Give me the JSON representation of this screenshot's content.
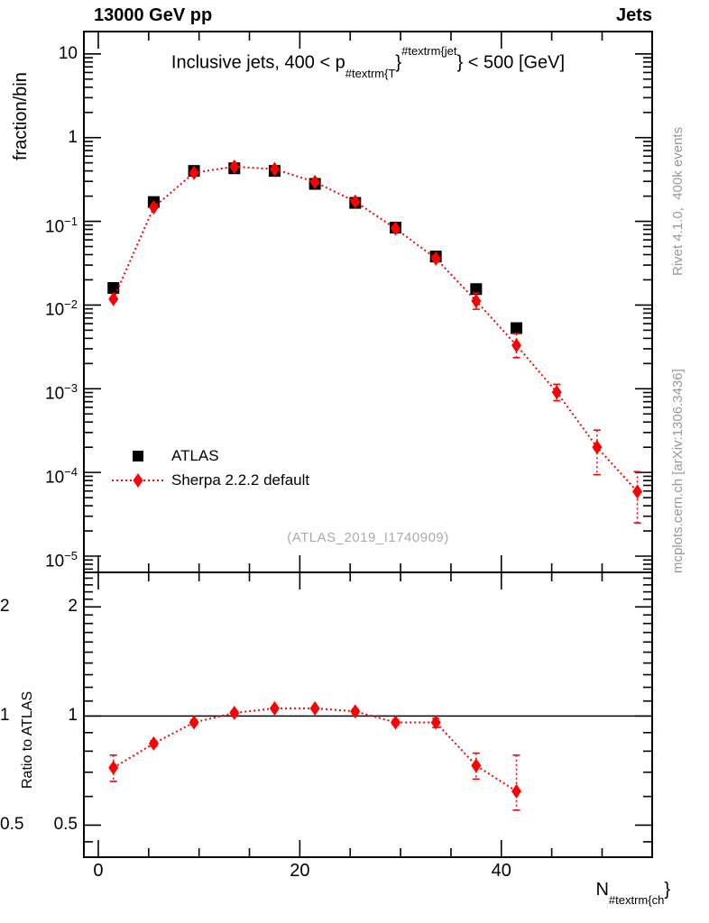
{
  "header": {
    "left": "13000 GeV pp",
    "right": "Jets"
  },
  "title": {
    "pre": "Inclusive jets, 400 < p",
    "sub": "#textrm{T",
    "brace1": "}",
    "sup": "#textrm{jet",
    "brace2": "}",
    "post": " < 500 [GeV]"
  },
  "watermark": {
    "text": "(ATLAS_2019_I1740909)"
  },
  "side_notes": {
    "top": "Rivet 4.1.0,  400k events",
    "bottom": "mcplots.cern.ch [arXiv:1306.3436]"
  },
  "x_axis_title": {
    "main": "N",
    "sub": "#textrm{ch",
    "close": "}"
  },
  "legend": {
    "entries": [
      {
        "label": "ATLAS",
        "marker": "square",
        "color": "#000000",
        "line": "none"
      },
      {
        "label": "Sherpa 2.2.2 default",
        "marker": "diamond",
        "color": "#ff0000",
        "line": "dotted"
      }
    ]
  },
  "colors": {
    "data": "#000000",
    "mc": "#ff0000",
    "frame": "#000000",
    "note": "#999999"
  },
  "chart_data": {
    "type": "line",
    "title": "Inclusive jets, 400 < pT^jet < 500 [GeV]",
    "xlabel": "N_ch",
    "grid": false,
    "panels": [
      {
        "id": "main",
        "ylabel": "fraction/bin",
        "y_scale": "log",
        "x_range": [
          -1.43,
          54.97
        ],
        "y_range": [
          6.4e-06,
          18.5
        ],
        "x_ticks_major": [
          {
            "v": 0,
            "t": "0"
          },
          {
            "v": 20,
            "t": "20"
          },
          {
            "v": 40,
            "t": "40"
          }
        ],
        "x_minor_step": 5,
        "x_labels_shown": false,
        "y_ticks": [
          {
            "v": 10,
            "t": "10"
          },
          {
            "v": 1,
            "t": "1"
          },
          {
            "v": 0.1,
            "t": "10",
            "e": "−1"
          },
          {
            "v": 0.01,
            "t": "10",
            "e": "−2"
          },
          {
            "v": 0.001,
            "t": "10",
            "e": "−3"
          },
          {
            "v": 0.0001,
            "t": "10",
            "e": "−4"
          },
          {
            "v": 1e-05,
            "t": "10",
            "e": "−5"
          }
        ],
        "x": [
          1.5,
          5.5,
          9.5,
          13.5,
          17.5,
          21.5,
          25.5,
          29.5,
          33.5,
          37.5,
          41.5,
          45.5,
          49.5,
          53.5
        ],
        "series": [
          {
            "name": "ATLAS",
            "marker": "square",
            "color": "#000000",
            "line": "none",
            "values": [
              0.016,
              0.17,
              0.4,
              0.43,
              0.4,
              0.28,
              0.166,
              0.084,
              0.038,
              0.0155,
              0.0053,
              null,
              null,
              null
            ],
            "err_lo": [
              0.0148,
              0.165,
              0.392,
              0.424,
              0.394,
              0.276,
              0.162,
              0.0815,
              0.0365,
              0.0147,
              0.0049,
              null,
              null,
              null
            ],
            "err_hi": [
              0.0172,
              0.175,
              0.408,
              0.436,
              0.406,
              0.284,
              0.17,
              0.0865,
              0.0395,
              0.0163,
              0.0057,
              null,
              null,
              null
            ]
          },
          {
            "name": "Sherpa 2.2.2 default",
            "marker": "diamond",
            "color": "#ff0000",
            "line": "dotted",
            "values": [
              0.0118,
              0.147,
              0.38,
              0.45,
              0.42,
              0.295,
              0.172,
              0.082,
              0.036,
              0.0112,
              0.0033,
              0.00091,
              0.0002,
              5.9e-05
            ],
            "err_lo": [
              0.0113,
              0.144,
              0.374,
              0.443,
              0.413,
              0.29,
              0.168,
              0.0795,
              0.0345,
              0.0089,
              0.00235,
              0.00072,
              9.4e-05,
              2.5e-05
            ],
            "err_hi": [
              0.0124,
              0.15,
              0.386,
              0.457,
              0.427,
              0.3,
              0.176,
              0.0845,
              0.0375,
              0.0139,
              0.00456,
              0.00113,
              0.00032,
              0.000102
            ]
          }
        ]
      },
      {
        "id": "ratio",
        "ylabel": "Ratio to ATLAS",
        "y_scale": "log",
        "x_range": [
          -1.43,
          54.97
        ],
        "y_range": [
          0.408,
          2.49
        ],
        "x_ticks_major": [
          {
            "v": 0,
            "t": "0"
          },
          {
            "v": 20,
            "t": "20"
          },
          {
            "v": 40,
            "t": "40"
          }
        ],
        "x_minor_step": 5,
        "x_labels_shown": true,
        "y_ticks": [
          {
            "v": 2,
            "t": "2"
          },
          {
            "v": 1,
            "t": "1"
          },
          {
            "v": 0.5,
            "t": "0.5"
          }
        ],
        "y_labels_right": true,
        "ref_line": 1,
        "x": [
          1.5,
          5.5,
          9.5,
          13.5,
          17.5,
          21.5,
          25.5,
          29.5,
          33.5,
          37.5,
          41.5
        ],
        "series": [
          {
            "name": "Sherpa 2.2.2 default / ATLAS",
            "marker": "diamond",
            "color": "#ff0000",
            "line": "dotted",
            "values": [
              0.72,
              0.84,
              0.96,
              1.02,
              1.05,
              1.05,
              1.03,
              0.96,
              0.96,
              0.73,
              0.62
            ],
            "err_lo": [
              0.66,
              0.825,
              0.945,
              1.005,
              1.04,
              1.04,
              1.015,
              0.945,
              0.93,
              0.67,
              0.55
            ],
            "err_hi": [
              0.78,
              0.855,
              0.975,
              1.035,
              1.06,
              1.06,
              1.045,
              0.975,
              0.985,
              0.79,
              0.78
            ]
          }
        ]
      }
    ]
  }
}
